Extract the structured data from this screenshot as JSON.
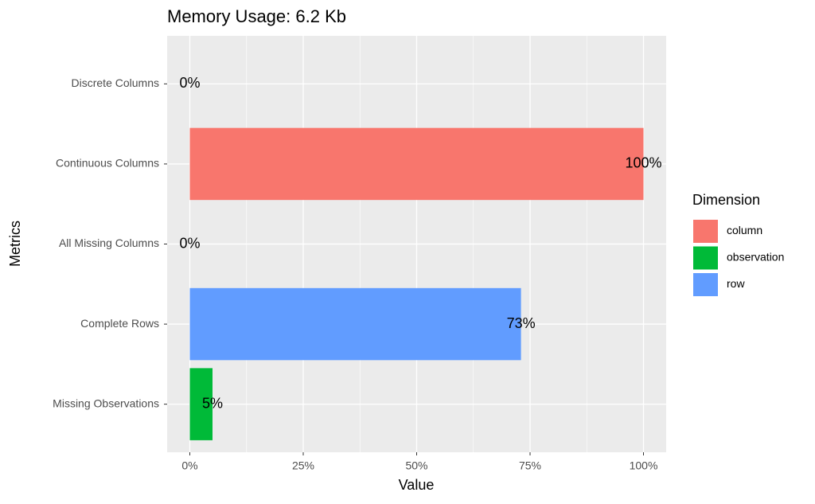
{
  "chart_data": {
    "type": "bar",
    "orientation": "horizontal",
    "title": "Memory Usage: 6.2 Kb",
    "x_label": "Value",
    "y_label": "Metrics",
    "categories": [
      "Discrete Columns",
      "Continuous Columns",
      "All Missing Columns",
      "Complete Rows",
      "Missing Observations"
    ],
    "series": [
      {
        "name": "column",
        "color": "#f8766d",
        "values": [
          0,
          100,
          0,
          null,
          null
        ],
        "value_labels": [
          "0%",
          "100%",
          "0%",
          null,
          null
        ]
      },
      {
        "name": "observation",
        "color": "#00ba38",
        "values": [
          null,
          null,
          null,
          null,
          5
        ],
        "value_labels": [
          null,
          null,
          null,
          null,
          "5%"
        ]
      },
      {
        "name": "row",
        "color": "#619cff",
        "values": [
          null,
          null,
          null,
          73,
          null
        ],
        "value_labels": [
          null,
          null,
          null,
          "73%",
          null
        ]
      }
    ],
    "legend_title": "Dimension",
    "legend": "right",
    "xlim": [
      -5,
      105
    ],
    "xticks": [
      {
        "value": 0,
        "label": "0%"
      },
      {
        "value": 25,
        "label": "25%"
      },
      {
        "value": 50,
        "label": "50%"
      },
      {
        "value": 75,
        "label": "75%"
      },
      {
        "value": 100,
        "label": "100%"
      }
    ],
    "minor_xticks": [
      12.5,
      37.5,
      62.5,
      87.5
    ],
    "grid": true
  }
}
